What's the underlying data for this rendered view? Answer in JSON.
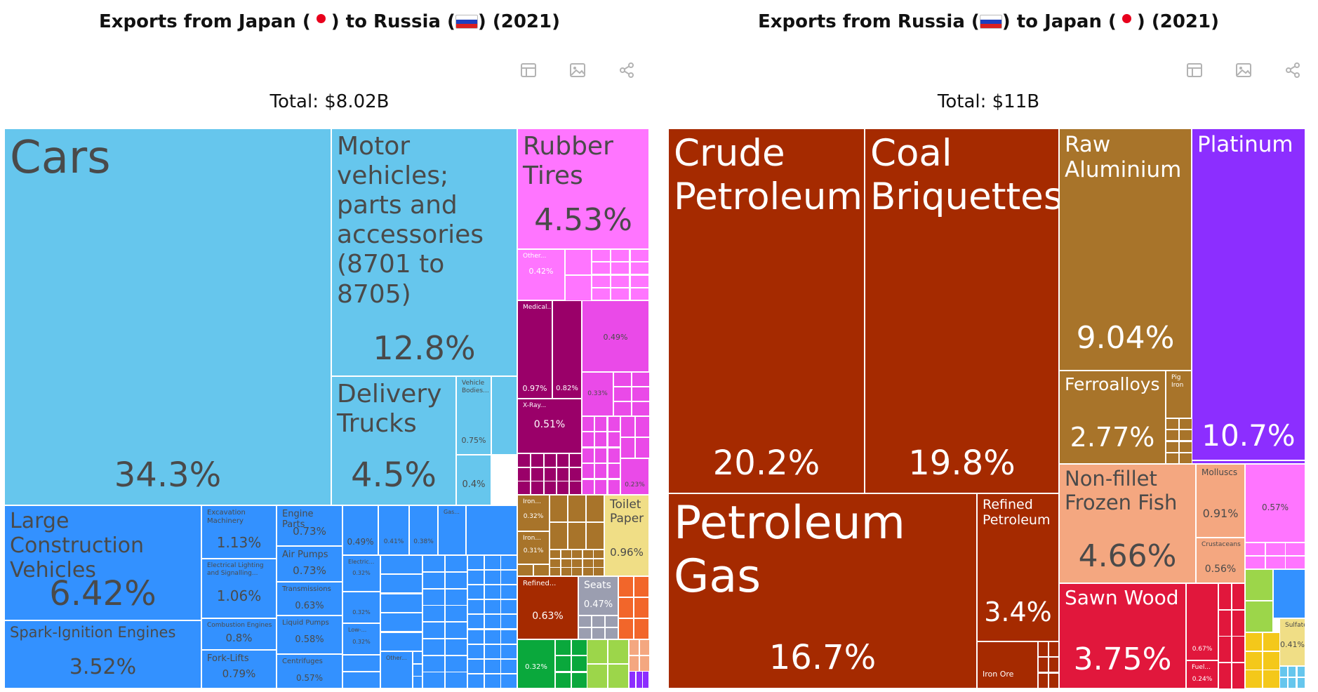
{
  "left": {
    "title_pre": "Exports from Japan (",
    "title_mid": ") to Russia (",
    "title_post": ") (2021)",
    "total": "Total: $8.02B"
  },
  "right": {
    "title_pre": "Exports from Russia (",
    "title_mid": ") to Japan (",
    "title_post": ") (2021)",
    "total": "Total: $11B"
  },
  "icons": [
    "table-icon",
    "image-icon",
    "share-icon"
  ],
  "colors": {
    "transport": "#66c6ed",
    "machinery": "#3391ff",
    "rubber": "#ff75ff",
    "chemicals": "#9a0069",
    "chemicals_light": "#ea4ae8",
    "metals": "#a8742a",
    "paper": "#f0de86",
    "minerals": "#a52a00",
    "precious": "#8c2eff",
    "animal": "#f4a780",
    "wood": "#e1173c",
    "green": "#0aa83c",
    "lime": "#9cd64a",
    "orange": "#f2662a",
    "grey": "#9b9eb0"
  },
  "chart_data": [
    {
      "type": "treemap",
      "title": "Exports from Japan ( ● ) to Russia ( ) (2021)",
      "total": "$8.02B",
      "items": [
        {
          "label": "Cars",
          "value": 34.3,
          "display": "34.3%"
        },
        {
          "label": "Motor vehicles; parts and accessories (8701 to 8705)",
          "value": 12.8,
          "display": "12.8%"
        },
        {
          "label": "Delivery Trucks",
          "value": 4.5,
          "display": "4.5%"
        },
        {
          "label": "Vehicle Bodies...",
          "value": 0.75,
          "display": "0.75%"
        },
        {
          "label": "",
          "value": 0.4,
          "display": "0.4%"
        },
        {
          "label": "Large Construction Vehicles",
          "value": 6.42,
          "display": "6.42%"
        },
        {
          "label": "Spark-Ignition Engines",
          "value": 3.52,
          "display": "3.52%"
        },
        {
          "label": "Excavation Machinery",
          "value": 1.13,
          "display": "1.13%"
        },
        {
          "label": "Electrical Lighting and Signalling...",
          "value": 1.06,
          "display": "1.06%"
        },
        {
          "label": "Combustion Engines",
          "value": 0.8,
          "display": "0.8%"
        },
        {
          "label": "Fork-Lifts",
          "value": 0.79,
          "display": "0.79%"
        },
        {
          "label": "Engine Parts",
          "value": 0.73,
          "display": "0.73%"
        },
        {
          "label": "Air Pumps",
          "value": 0.73,
          "display": "0.73%"
        },
        {
          "label": "Transmissions",
          "value": 0.63,
          "display": "0.63%"
        },
        {
          "label": "Liquid Pumps",
          "value": 0.58,
          "display": "0.58%"
        },
        {
          "label": "Centrifuges",
          "value": 0.57,
          "display": "0.57%"
        },
        {
          "label": "",
          "value": 0.49,
          "display": "0.49%"
        },
        {
          "label": "",
          "value": 0.41,
          "display": "0.41%"
        },
        {
          "label": "",
          "value": 0.38,
          "display": "0.38%"
        },
        {
          "label": "Gas...",
          "value": null,
          "display": ""
        },
        {
          "label": "Electric...",
          "value": 0.32,
          "display": "0.32%"
        },
        {
          "label": "",
          "value": 0.32,
          "display": "0.32%"
        },
        {
          "label": "Low-...",
          "value": 0.32,
          "display": "0.32%"
        },
        {
          "label": "Other...",
          "value": null,
          "display": ""
        },
        {
          "label": "Rubber Tires",
          "value": 4.53,
          "display": "4.53%"
        },
        {
          "label": "Other...",
          "value": 0.42,
          "display": "0.42%"
        },
        {
          "label": "Medical...",
          "value": 0.97,
          "display": "0.97%"
        },
        {
          "label": "",
          "value": 0.82,
          "display": "0.82%"
        },
        {
          "label": "X-Ray...",
          "value": 0.51,
          "display": "0.51%"
        },
        {
          "label": "",
          "value": 0.49,
          "display": "0.49%"
        },
        {
          "label": "",
          "value": 0.33,
          "display": "0.33%"
        },
        {
          "label": "",
          "value": 0.23,
          "display": "0.23%"
        },
        {
          "label": "Iron...",
          "value": 0.32,
          "display": "0.32%"
        },
        {
          "label": "Iron...",
          "value": 0.31,
          "display": "0.31%"
        },
        {
          "label": "Toilet Paper",
          "value": 0.96,
          "display": "0.96%"
        },
        {
          "label": "Refined...",
          "value": 0.63,
          "display": "0.63%"
        },
        {
          "label": "Seats",
          "value": 0.47,
          "display": "0.47%"
        },
        {
          "label": "",
          "value": 0.32,
          "display": "0.32%"
        }
      ]
    },
    {
      "type": "treemap",
      "title": "Exports from Russia ( ) to Japan ( ● ) (2021)",
      "total": "$11B",
      "items": [
        {
          "label": "Crude Petroleum",
          "value": 20.2,
          "display": "20.2%"
        },
        {
          "label": "Coal Briquettes",
          "value": 19.8,
          "display": "19.8%"
        },
        {
          "label": "Petroleum Gas",
          "value": 16.7,
          "display": "16.7%"
        },
        {
          "label": "Refined Petroleum",
          "value": 3.4,
          "display": "3.4%"
        },
        {
          "label": "Iron Ore",
          "value": null,
          "display": ""
        },
        {
          "label": "Raw Aluminium",
          "value": 9.04,
          "display": "9.04%"
        },
        {
          "label": "Ferroalloys",
          "value": 2.77,
          "display": "2.77%"
        },
        {
          "label": "Pig Iron",
          "value": null,
          "display": ""
        },
        {
          "label": "Platinum",
          "value": 10.7,
          "display": "10.7%"
        },
        {
          "label": "Non-fillet Frozen Fish",
          "value": 4.66,
          "display": "4.66%"
        },
        {
          "label": "Molluscs",
          "value": 0.91,
          "display": "0.91%"
        },
        {
          "label": "Crustaceans",
          "value": 0.56,
          "display": "0.56%"
        },
        {
          "label": "Sawn Wood",
          "value": 3.75,
          "display": "3.75%"
        },
        {
          "label": "",
          "value": 0.67,
          "display": "0.67%"
        },
        {
          "label": "Fuel...",
          "value": 0.24,
          "display": "0.24%"
        },
        {
          "label": "",
          "value": 0.57,
          "display": "0.57%"
        },
        {
          "label": "Sulfate...",
          "value": 0.41,
          "display": "0.41%"
        }
      ]
    }
  ]
}
